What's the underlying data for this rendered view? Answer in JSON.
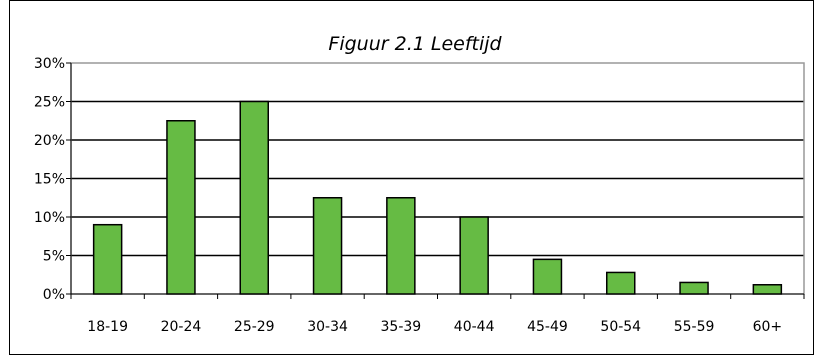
{
  "chart_data": {
    "type": "bar",
    "title": "Figuur 2.1  Leeftijd",
    "xlabel": "",
    "ylabel": "",
    "categories": [
      "18-19",
      "20-24",
      "25-29",
      "30-34",
      "35-39",
      "40-44",
      "45-49",
      "50-54",
      "55-59",
      "60+"
    ],
    "values": [
      9,
      22.5,
      25,
      12.5,
      12.5,
      10,
      4.5,
      2.8,
      1.5,
      1.2
    ],
    "ylim": [
      0,
      30
    ],
    "yticks": [
      0,
      5,
      10,
      15,
      20,
      25,
      30
    ],
    "ytick_labels": [
      "0%",
      "5%",
      "10%",
      "15%",
      "20%",
      "25%",
      "30%"
    ],
    "grid": true,
    "legend": "none",
    "colors": {
      "bar_fill": "#66bb44",
      "bar_stroke": "#000000",
      "grid": "#000000",
      "plot_border": "#999999",
      "frame": "#000000"
    }
  }
}
